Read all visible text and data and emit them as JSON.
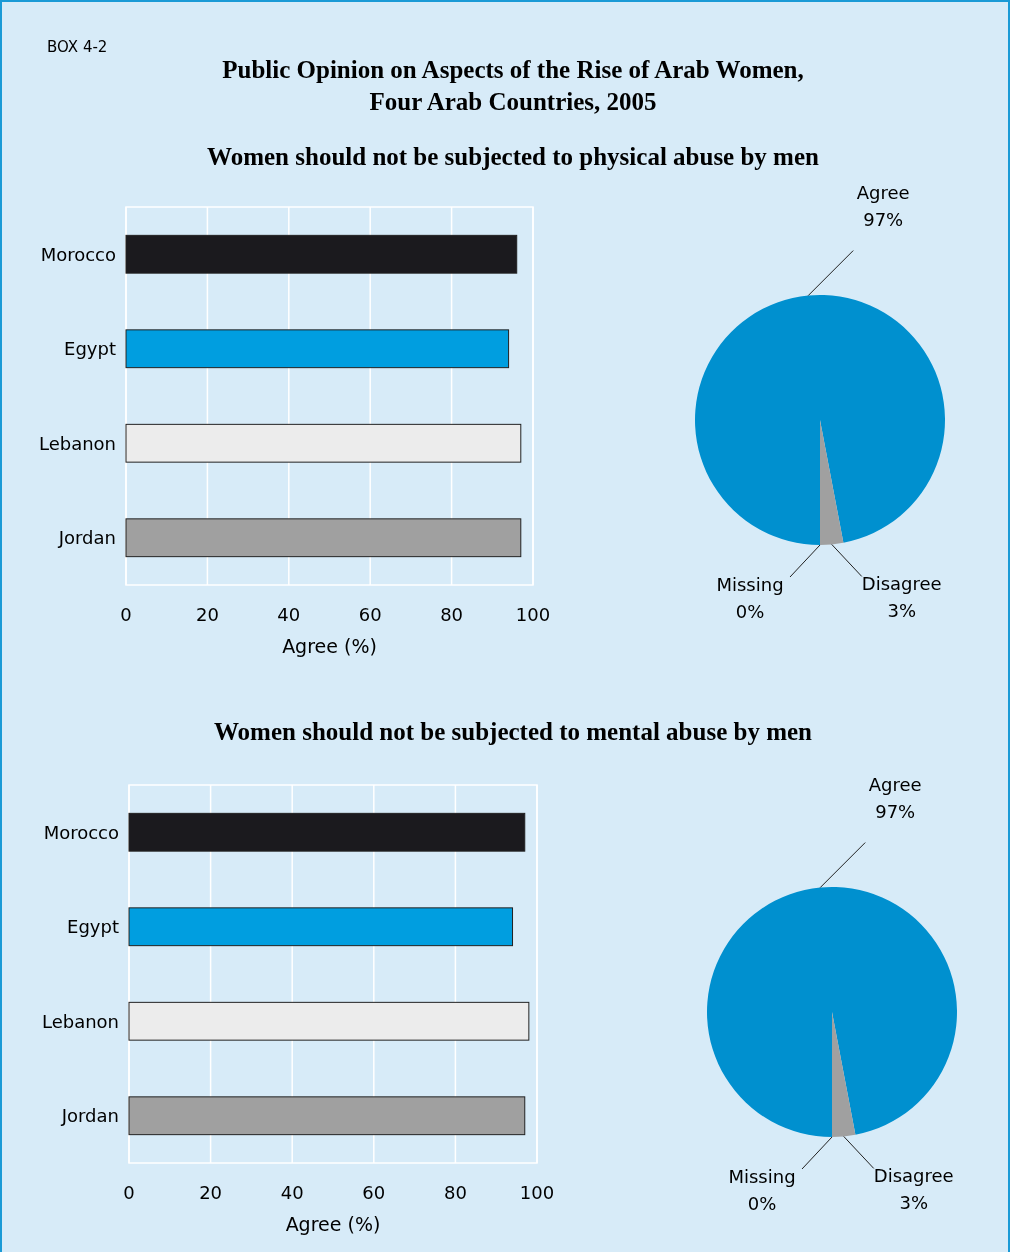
{
  "chart_data": [
    {
      "type": "bar",
      "orientation": "horizontal",
      "title": "Public Opinion on Aspects of the Rise of Arab Women,\nFour Arab Countries, 2005",
      "subtitle": "Women should not be subjected to physical abuse by men",
      "annotations": [
        "BOX 4-2"
      ],
      "categories": [
        "Morocco",
        "Egypt",
        "Lebanon",
        "Jordan"
      ],
      "values": [
        96,
        94,
        97,
        97
      ],
      "colors": [
        "#1b1a1e",
        "#009ee0",
        "#ececec",
        "#a0a0a0"
      ],
      "xlabel": "Agree (%)",
      "xlim": [
        0,
        100
      ],
      "xticks": [
        0,
        20,
        40,
        60,
        80,
        100
      ],
      "grid": "x"
    },
    {
      "type": "pie",
      "categories": [
        "Agree",
        "Disagree",
        "Missing"
      ],
      "values": [
        97,
        3,
        0
      ],
      "colors": [
        "#0090cf",
        "#a0a0a0",
        null
      ],
      "value_labels": [
        "97%",
        "3%",
        "0%"
      ]
    },
    {
      "type": "bar",
      "orientation": "horizontal",
      "title": "Women should not be subjected to mental abuse by men",
      "categories": [
        "Morocco",
        "Egypt",
        "Lebanon",
        "Jordan"
      ],
      "values": [
        97,
        94,
        98,
        97
      ],
      "colors": [
        "#1b1a1e",
        "#009ee0",
        "#ececec",
        "#a0a0a0"
      ],
      "xlabel": "Agree (%)",
      "xlim": [
        0,
        100
      ],
      "xticks": [
        0,
        20,
        40,
        60,
        80,
        100
      ],
      "grid": "x"
    },
    {
      "type": "pie",
      "categories": [
        "Agree",
        "Disagree",
        "Missing"
      ],
      "values": [
        97,
        3,
        0
      ],
      "colors": [
        "#0090cf",
        "#a0a0a0",
        null
      ],
      "value_labels": [
        "97%",
        "3%",
        "0%"
      ]
    }
  ]
}
